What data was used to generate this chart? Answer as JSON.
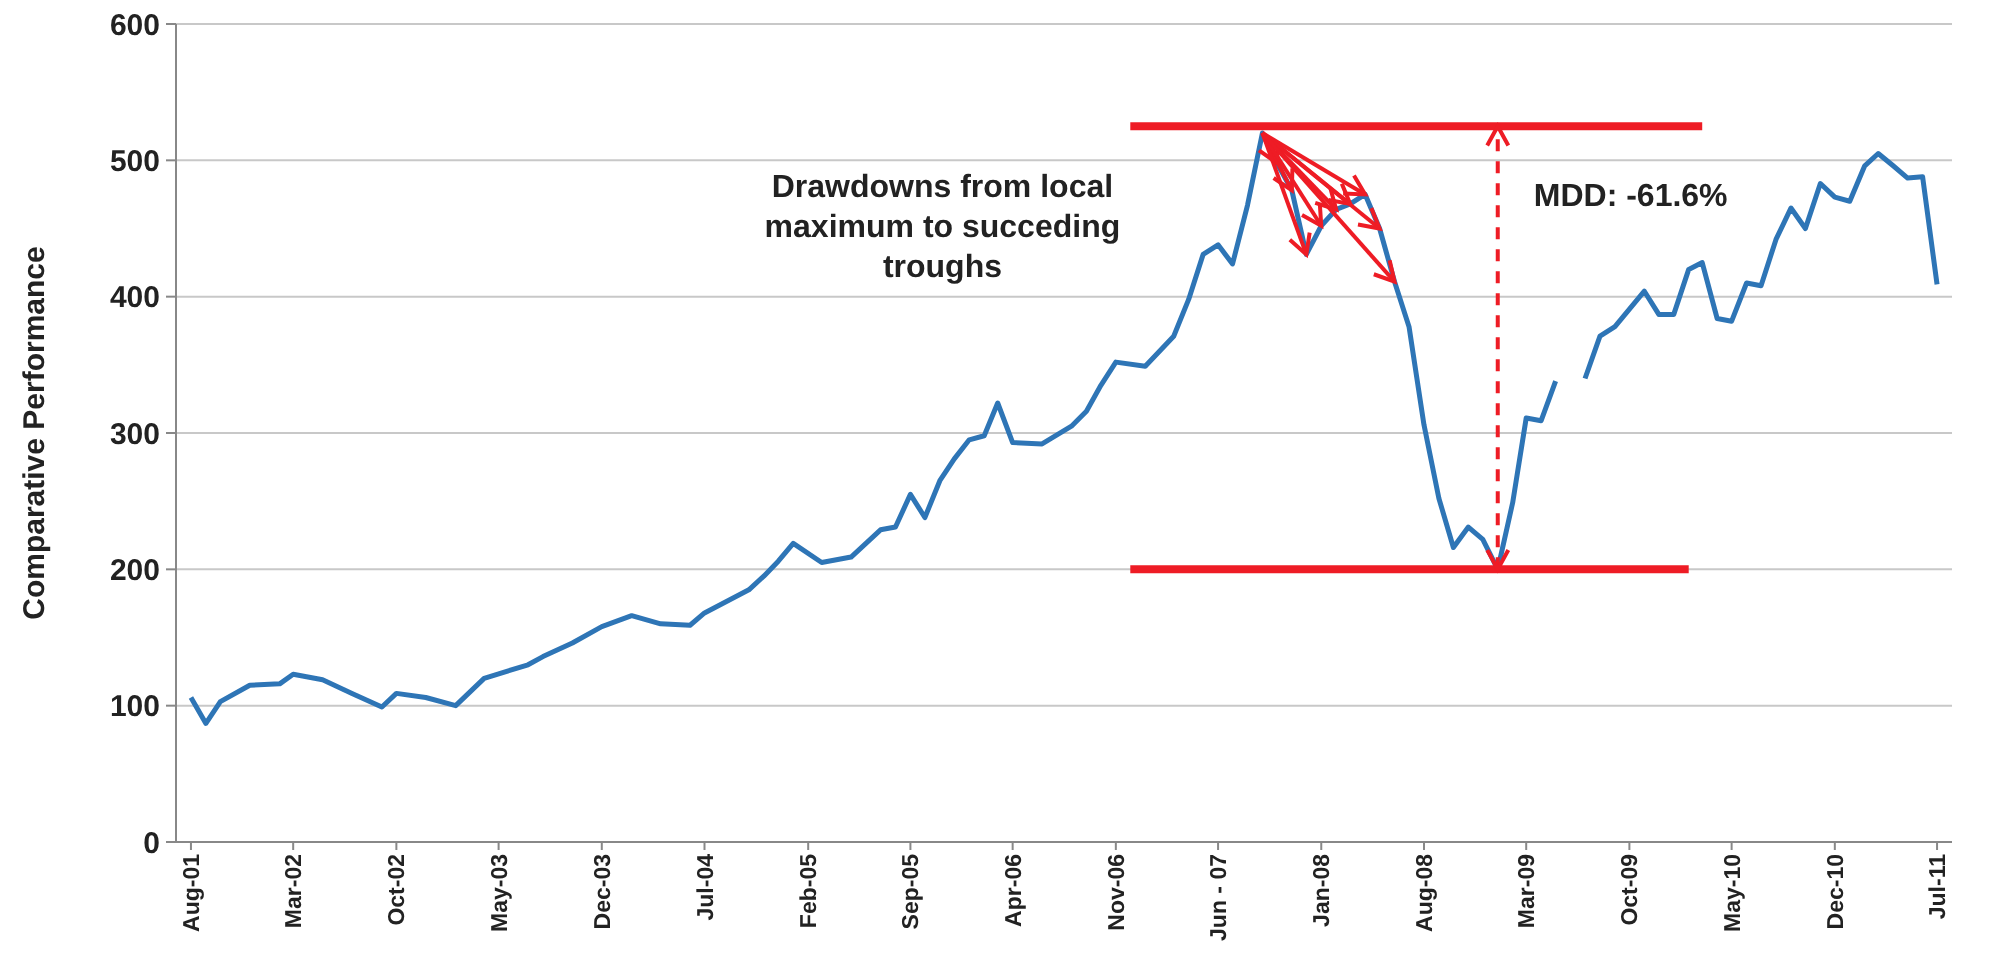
{
  "chart_data": {
    "type": "line",
    "ylabel": "Comparative Performance",
    "ylim": [
      0,
      600
    ],
    "yticks": [
      0,
      100,
      200,
      300,
      400,
      500,
      600
    ],
    "grid": "y",
    "xlim": [
      "2001-07",
      "2011-08"
    ],
    "xticks": [
      {
        "value": "2001-08",
        "label": "Aug-01"
      },
      {
        "value": "2002-03",
        "label": "Mar-02"
      },
      {
        "value": "2002-10",
        "label": "Oct-02"
      },
      {
        "value": "2003-05",
        "label": "May-03"
      },
      {
        "value": "2003-12",
        "label": "Dec-03"
      },
      {
        "value": "2004-07",
        "label": "Jul-04"
      },
      {
        "value": "2005-02",
        "label": "Feb-05"
      },
      {
        "value": "2005-09",
        "label": "Sep-05"
      },
      {
        "value": "2006-04",
        "label": "Apr-06"
      },
      {
        "value": "2006-11",
        "label": "Nov-06"
      },
      {
        "value": "2007-06",
        "label": "Jun - 07"
      },
      {
        "value": "2008-01",
        "label": "Jan-08"
      },
      {
        "value": "2008-08",
        "label": "Aug-08"
      },
      {
        "value": "2009-03",
        "label": "Mar-09"
      },
      {
        "value": "2009-10",
        "label": "Oct-09"
      },
      {
        "value": "2010-05",
        "label": "May-10"
      },
      {
        "value": "2010-12",
        "label": "Dec-10"
      },
      {
        "value": "2011-07",
        "label": "Jul-11"
      }
    ],
    "x": [
      "2001-08",
      "2001-09",
      "2001-10",
      "2001-12",
      "2002-02",
      "2002-03",
      "2002-05",
      "2002-07",
      "2002-09",
      "2002-10",
      "2002-12",
      "2003-02",
      "2003-04",
      "2003-07",
      "2003-08",
      "2003-10",
      "2003-12",
      "2004-01",
      "2004-02",
      "2004-04",
      "2004-06",
      "2004-07",
      "2004-10",
      "2004-11",
      "2004-12",
      "2005-01",
      "2005-03",
      "2005-05",
      "2005-07",
      "2005-08",
      "2005-09",
      "2005-10",
      "2005-11",
      "2005-12",
      "2006-01",
      "2006-02",
      "2006-03",
      "2006-04",
      "2006-06",
      "2006-08",
      "2006-09",
      "2006-10",
      "2006-11",
      "2007-01",
      "2007-03",
      "2007-04",
      "2007-05",
      "2007-06",
      "2007-07",
      "2007-08",
      "2007-09",
      "2007-10",
      "2007-11",
      "2007-12",
      "2008-01",
      "2008-02",
      "2008-03",
      "2008-04",
      "2008-05",
      "2008-06",
      "2008-07",
      "2008-08",
      "2008-09",
      "2008-10",
      "2008-11",
      "2008-12",
      "2009-01",
      "2009-02",
      "2009-03",
      "2009-04",
      "2009-05",
      "2009-06",
      "2009-07",
      "2009-08",
      "2009-09",
      "2009-11",
      "2009-12",
      "2010-01",
      "2010-02",
      "2010-03",
      "2010-04",
      "2010-05",
      "2010-06",
      "2010-07",
      "2010-08",
      "2010-09",
      "2010-10",
      "2010-11",
      "2010-12",
      "2011-01",
      "2011-02",
      "2011-03",
      "2011-04",
      "2011-05",
      "2011-06",
      "2011-07"
    ],
    "series": [
      {
        "color": "#2e75b6",
        "values": [
          106,
          87,
          103,
          115,
          116,
          123,
          119,
          109,
          99,
          109,
          106,
          100,
          120,
          130,
          136,
          146,
          158,
          162,
          166,
          160,
          159,
          168,
          185,
          195,
          206,
          219,
          205,
          209,
          229,
          231,
          255,
          238,
          265,
          281,
          295,
          298,
          322,
          293,
          292,
          305,
          316,
          335,
          352,
          349,
          371,
          398,
          431,
          438,
          424,
          467,
          520,
          498,
          478,
          431,
          452,
          464,
          468,
          475,
          450,
          411,
          378,
          306,
          252,
          216,
          231,
          222,
          200,
          249,
          311,
          309,
          338,
          null,
          340,
          371,
          378,
          404,
          387,
          387,
          420,
          425,
          384,
          382,
          410,
          408,
          442,
          465,
          450,
          483,
          473,
          470,
          496,
          505,
          496,
          487,
          488,
          409
        ]
      },
      {
        "type": "line",
        "color": "#ee1c25",
        "x": [
          "2006-12",
          "2010-03"
        ],
        "values": [
          525,
          525
        ]
      },
      {
        "type": "line",
        "color": "#ee1c25",
        "x": [
          "2006-12",
          "2010-02"
        ],
        "values": [
          200,
          200
        ]
      }
    ],
    "annotations": [
      "Drawdowns from local maximum to succeding troughs",
      "MDD: -61.6%"
    ]
  }
}
